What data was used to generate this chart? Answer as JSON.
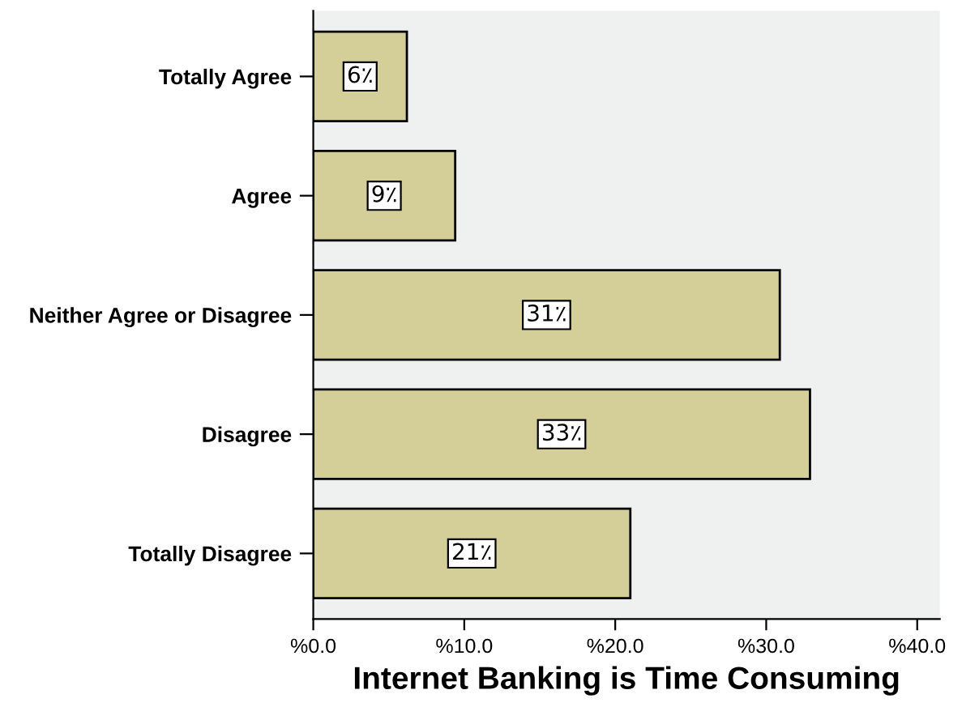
{
  "chart_data": {
    "type": "bar",
    "orientation": "horizontal",
    "xlabel": "Internet Banking is Time Consuming",
    "categories": [
      "Totally Agree",
      "Agree",
      "Neither Agree or Disagree",
      "Disagree",
      "Totally Disagree"
    ],
    "values": [
      6.2,
      9.4,
      30.9,
      32.9,
      21.0
    ],
    "value_labels": [
      "6٪",
      "9٪",
      "31٪",
      "33٪",
      "21٪"
    ],
    "color": "#d4cf99",
    "xlim": [
      0,
      41.5
    ],
    "xticks": [
      {
        "value": 0,
        "label": "%0.0"
      },
      {
        "value": 10,
        "label": "%10.0"
      },
      {
        "value": 20,
        "label": "%20.0"
      },
      {
        "value": 30,
        "label": "%30.0"
      },
      {
        "value": 40,
        "label": "%40.0"
      }
    ],
    "grid": false
  }
}
